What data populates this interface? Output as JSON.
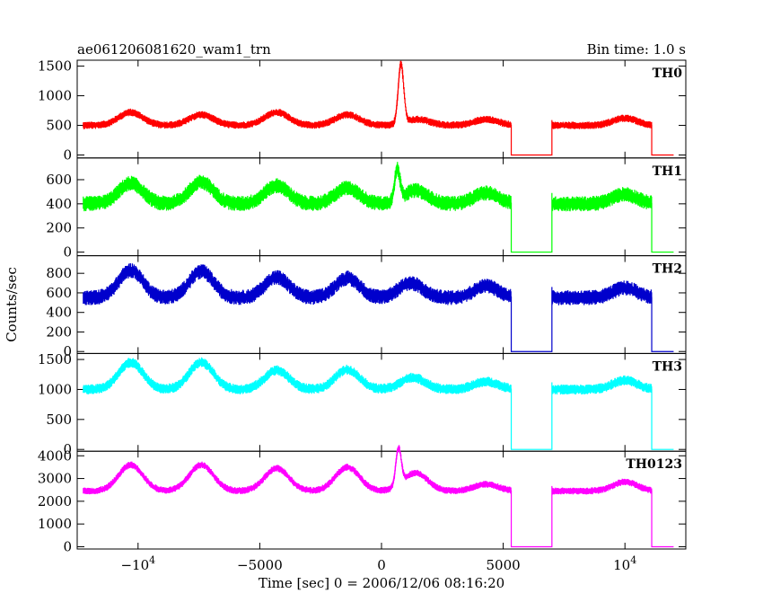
{
  "chart_data": {
    "type": "line",
    "title": "ae061206081620_wam1_trn",
    "bin_label": "Bin time: 1.0 s",
    "xlabel": "Time [sec] 0 = 2006/12/06 08:16:20",
    "ylabel": "Counts/sec",
    "xlim": [
      -12500,
      12500
    ],
    "x_ticks": [
      {
        "value": -10000,
        "base": "−10",
        "exp": "4"
      },
      {
        "value": -5000,
        "base": "−5000",
        "exp": ""
      },
      {
        "value": 0,
        "base": "0",
        "exp": ""
      },
      {
        "value": 5000,
        "base": "5000",
        "exp": ""
      },
      {
        "value": 10000,
        "base": "10",
        "exp": "4"
      }
    ],
    "gaps": [
      [
        5330,
        7000
      ],
      [
        11100,
        12000
      ]
    ],
    "data_range": [
      -12250,
      11100
    ],
    "series": [
      {
        "name": "TH0",
        "color": "#ff0000",
        "ylim": [
          -50,
          1600
        ],
        "y_ticks": [
          0,
          500,
          1000,
          1500
        ],
        "base": 500,
        "noise": 45,
        "peaks": [
          [
            -10300,
            220
          ],
          [
            -7400,
            180
          ],
          [
            -4300,
            220
          ],
          [
            -1400,
            180
          ],
          [
            800,
            1000
          ],
          [
            1500,
            100
          ],
          [
            4300,
            100
          ],
          [
            10000,
            120
          ]
        ]
      },
      {
        "name": "TH1",
        "color": "#00ff00",
        "ylim": [
          -30,
          780
        ],
        "y_ticks": [
          0,
          200,
          400,
          600
        ],
        "base": 400,
        "noise": 45,
        "peaks": [
          [
            -10300,
            170
          ],
          [
            -7400,
            180
          ],
          [
            -4300,
            150
          ],
          [
            -1400,
            130
          ],
          [
            650,
            250
          ],
          [
            1400,
            110
          ],
          [
            4300,
            90
          ],
          [
            10000,
            80
          ]
        ]
      },
      {
        "name": "TH2",
        "color": "#0000cc",
        "ylim": [
          -20,
          980
        ],
        "y_ticks": [
          0,
          200,
          400,
          600,
          800
        ],
        "base": 550,
        "noise": 55,
        "peaks": [
          [
            -10300,
            280
          ],
          [
            -7400,
            270
          ],
          [
            -4300,
            210
          ],
          [
            -1400,
            200
          ],
          [
            1200,
            150
          ],
          [
            4300,
            120
          ],
          [
            10000,
            100
          ]
        ]
      },
      {
        "name": "TH3",
        "color": "#00ffff",
        "ylim": [
          -30,
          1600
        ],
        "y_ticks": [
          0,
          500,
          1000,
          1500
        ],
        "base": 1000,
        "noise": 60,
        "peaks": [
          [
            -10300,
            450
          ],
          [
            -7400,
            450
          ],
          [
            -4300,
            320
          ],
          [
            -1400,
            330
          ],
          [
            1300,
            200
          ],
          [
            4300,
            130
          ],
          [
            10000,
            150
          ]
        ]
      },
      {
        "name": "TH0123",
        "color": "#ff00ff",
        "ylim": [
          -100,
          4200
        ],
        "y_ticks": [
          0,
          1000,
          2000,
          3000,
          4000
        ],
        "base": 2450,
        "noise": 110,
        "peaks": [
          [
            -10300,
            1150
          ],
          [
            -7400,
            1150
          ],
          [
            -4300,
            1000
          ],
          [
            -1400,
            1050
          ],
          [
            700,
            1600
          ],
          [
            1400,
            800
          ],
          [
            4300,
            300
          ],
          [
            10000,
            400
          ]
        ]
      }
    ]
  }
}
